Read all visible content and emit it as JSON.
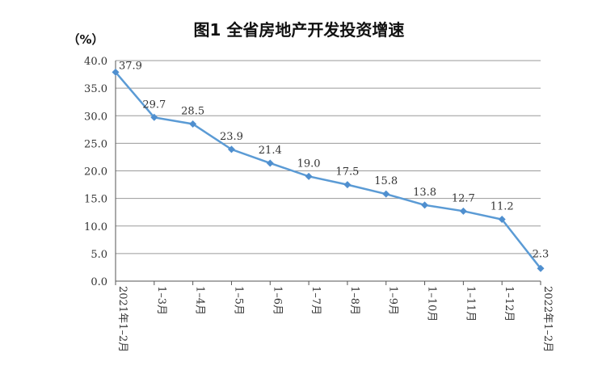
{
  "chart_data": {
    "type": "line",
    "title": "图1 全省房地产开发投资增速",
    "ylabel": "（%）",
    "xlabel": "",
    "ylim": [
      0,
      40
    ],
    "yticks": [
      "0.0",
      "5.0",
      "10.0",
      "15.0",
      "20.0",
      "25.0",
      "30.0",
      "35.0",
      "40.0"
    ],
    "categories": [
      "2021年1–2月",
      "1–3月",
      "1–4月",
      "1–5月",
      "1–6月",
      "1–7月",
      "1–8月",
      "1–9月",
      "1–10月",
      "1–11月",
      "1–12月",
      "2022年1–2月"
    ],
    "series": [
      {
        "values": [
          37.9,
          29.7,
          28.5,
          23.9,
          21.4,
          19.0,
          17.5,
          15.8,
          13.8,
          12.7,
          11.2,
          2.3
        ],
        "labels": [
          "37.9",
          "29.7",
          "28.5",
          "23.9",
          "21.4",
          "19.0",
          "17.5",
          "15.8",
          "13.8",
          "12.7",
          "11.2",
          "2.3"
        ]
      }
    ],
    "grid": true,
    "line_color": "#5b9bd5",
    "marker": "diamond"
  }
}
